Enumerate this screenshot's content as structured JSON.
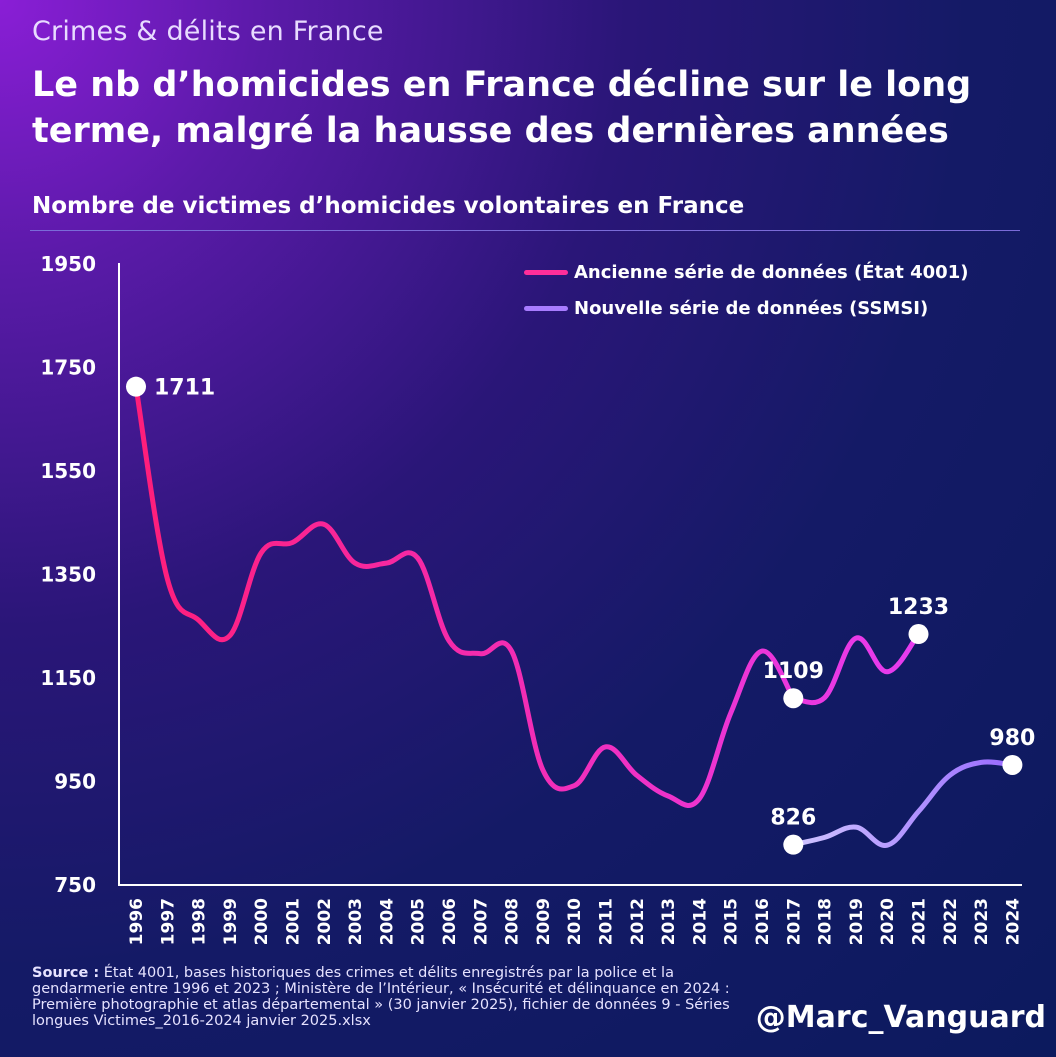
{
  "header": {
    "kicker": "Crimes & délits en France",
    "title": "Le nb d’homicides en France décline sur le long terme, malgré la hausse des dernières années",
    "subtitle": "Nombre de victimes d’homicides volontaires en France"
  },
  "legend": {
    "items": [
      {
        "label": "Ancienne série de données (État 4001)",
        "color": "#ff2e9a"
      },
      {
        "label": "Nouvelle série de données (SSMSI)",
        "color": "#a87cff"
      }
    ]
  },
  "chart_data": {
    "type": "line",
    "ylim": [
      750,
      1950
    ],
    "yticks": [
      750,
      950,
      1150,
      1350,
      1550,
      1750,
      1950
    ],
    "categories": [
      "1996",
      "1997",
      "1998",
      "1999",
      "2000",
      "2001",
      "2002",
      "2003",
      "2004",
      "2005",
      "2006",
      "2007",
      "2008",
      "2009",
      "2010",
      "2011",
      "2012",
      "2013",
      "2014",
      "2015",
      "2016",
      "2017",
      "2018",
      "2019",
      "2020",
      "2021",
      "2022",
      "2023",
      "2024"
    ],
    "series": [
      {
        "name": "Ancienne série de données (État 4001)",
        "color": "#ff2e9a",
        "x": [
          "1996",
          "1997",
          "1998",
          "1999",
          "2000",
          "2001",
          "2002",
          "2003",
          "2004",
          "2005",
          "2006",
          "2007",
          "2008",
          "2009",
          "2010",
          "2011",
          "2012",
          "2013",
          "2014",
          "2015",
          "2016",
          "2017"
        ],
        "values": [
          1711,
          1340,
          1260,
          1230,
          1390,
          1410,
          1445,
          1370,
          1370,
          1380,
          1220,
          1195,
          1200,
          970,
          940,
          1015,
          960,
          920,
          915,
          1080,
          1200,
          1109
        ]
      },
      {
        "name": "Ancienne série de données (État 4001)",
        "color": "#ff2e9a",
        "x": [
          "2017",
          "2018",
          "2019",
          "2020",
          "2021"
        ],
        "values": [
          1109,
          1110,
          1225,
          1160,
          1233
        ]
      },
      {
        "name": "Nouvelle série de données (SSMSI)",
        "color": "#a87cff",
        "x": [
          "2017",
          "2018",
          "2019",
          "2020",
          "2021",
          "2022",
          "2023",
          "2024"
        ],
        "values": [
          826,
          840,
          860,
          825,
          890,
          960,
          985,
          980
        ]
      }
    ],
    "annotations": [
      {
        "x": "1996",
        "y": 1711,
        "label": "1711",
        "pos": "right"
      },
      {
        "x": "2017",
        "y": 1109,
        "label": "1109",
        "pos": "above"
      },
      {
        "x": "2021",
        "y": 1233,
        "label": "1233",
        "pos": "above"
      },
      {
        "x": "2017",
        "y": 826,
        "label": "826",
        "pos": "above"
      },
      {
        "x": "2024",
        "y": 980,
        "label": "980",
        "pos": "above"
      }
    ]
  },
  "source": {
    "label": "Source :",
    "text": "État 4001, bases historiques des crimes et délits enregistrés par la police et la gendarmerie entre 1996 et 2023 ; Ministère de l’Intérieur, « Insécurité et délinquance en 2024 : Première photographie et atlas départemental » (30 janvier 2025), fichier de données 9 - Séries longues Victimes_2016-2024  janvier 2025.xlsx"
  },
  "handle": "@Marc_Vanguard"
}
